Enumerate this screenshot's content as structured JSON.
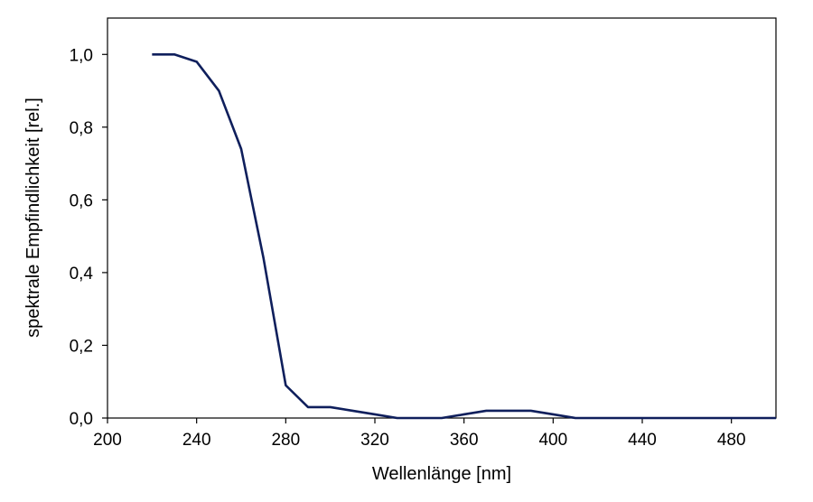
{
  "chart_data": {
    "type": "line",
    "title": "",
    "xlabel": "Wellenlänge [nm]",
    "ylabel": "spektrale Empfindlichkeit [rel.]",
    "xlim": [
      200,
      500
    ],
    "ylim": [
      0,
      1.1
    ],
    "x_ticks": [
      200,
      240,
      280,
      320,
      360,
      400,
      440,
      480
    ],
    "x_tick_labels": [
      "200",
      "240",
      "280",
      "320",
      "360",
      "400",
      "440",
      "480"
    ],
    "y_ticks": [
      0,
      0.2,
      0.4,
      0.6,
      0.8,
      1.0
    ],
    "y_tick_labels": [
      "0,0",
      "0,2",
      "0,4",
      "0,6",
      "0,8",
      "1,0"
    ],
    "grid": false,
    "legend": "none",
    "series": [
      {
        "color": "#0f1f5c",
        "x": [
          220,
          230,
          240,
          250,
          260,
          270,
          280,
          290,
          300,
          310,
          320,
          330,
          340,
          350,
          360,
          370,
          380,
          390,
          400,
          410,
          420,
          430,
          440,
          450,
          460,
          470,
          480,
          490,
          500
        ],
        "y": [
          1.0,
          1.0,
          0.98,
          0.9,
          0.74,
          0.44,
          0.09,
          0.03,
          0.03,
          0.02,
          0.01,
          0.0,
          0.0,
          0.0,
          0.01,
          0.02,
          0.02,
          0.02,
          0.01,
          0.0,
          0.0,
          0.0,
          0.0,
          0.0,
          0.0,
          0.0,
          0.0,
          0.0,
          0.0
        ]
      }
    ]
  }
}
